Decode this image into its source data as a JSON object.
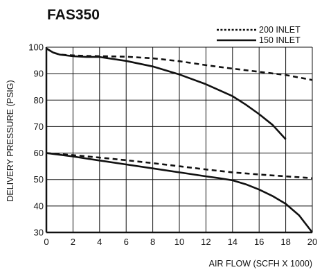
{
  "chart_data": {
    "type": "line",
    "title": "FAS350",
    "xlabel": "AIR FLOW (SCFH X 1000)",
    "ylabel": "DELIVERY PRESSURE (PSIG)",
    "xlim": [
      0,
      20
    ],
    "ylim": [
      30,
      100
    ],
    "xticks": [
      0,
      2,
      4,
      6,
      8,
      10,
      12,
      14,
      16,
      18,
      20
    ],
    "yticks": [
      30,
      40,
      50,
      60,
      70,
      80,
      90,
      100
    ],
    "grid": true,
    "legend_position": "top-right",
    "series": [
      {
        "name": "200 INLET",
        "style": "dashed",
        "curve": "high",
        "x": [
          0,
          0.5,
          1,
          2,
          3,
          4,
          6,
          8,
          10,
          12,
          14,
          16,
          18,
          20
        ],
        "y": [
          99.5,
          98,
          97.2,
          96.9,
          96.7,
          96.6,
          96.4,
          95.8,
          94.7,
          93.2,
          91.9,
          90.7,
          89.5,
          87.6
        ]
      },
      {
        "name": "150 INLET",
        "style": "solid",
        "curve": "high",
        "x": [
          0,
          0.5,
          1,
          2,
          3,
          4,
          6,
          8,
          10,
          12,
          14,
          15,
          16,
          17,
          18
        ],
        "y": [
          99.5,
          98,
          97.2,
          96.6,
          96.3,
          96.3,
          94.8,
          92.7,
          89.7,
          86.0,
          81.5,
          78.3,
          74.7,
          70.7,
          65.2
        ]
      },
      {
        "name": "200 INLET",
        "style": "dashed",
        "curve": "low",
        "x": [
          0,
          2,
          4,
          6,
          8,
          10,
          12,
          14,
          16,
          18,
          20
        ],
        "y": [
          60,
          59.2,
          58.3,
          57.3,
          56.2,
          55,
          53.8,
          52.7,
          51.9,
          51.2,
          50.5
        ]
      },
      {
        "name": "150 INLET",
        "style": "solid",
        "curve": "low",
        "x": [
          0,
          2,
          4,
          6,
          8,
          10,
          12,
          13,
          14,
          15,
          16,
          17,
          18,
          19,
          20
        ],
        "y": [
          60,
          58.7,
          57.2,
          55.7,
          54.2,
          52.7,
          51.2,
          50.5,
          49.7,
          48.2,
          46.2,
          43.8,
          40.8,
          36.5,
          30
        ]
      }
    ],
    "colors": {
      "lines": "#111111",
      "grid": "#111111",
      "background": "#ffffff"
    }
  }
}
